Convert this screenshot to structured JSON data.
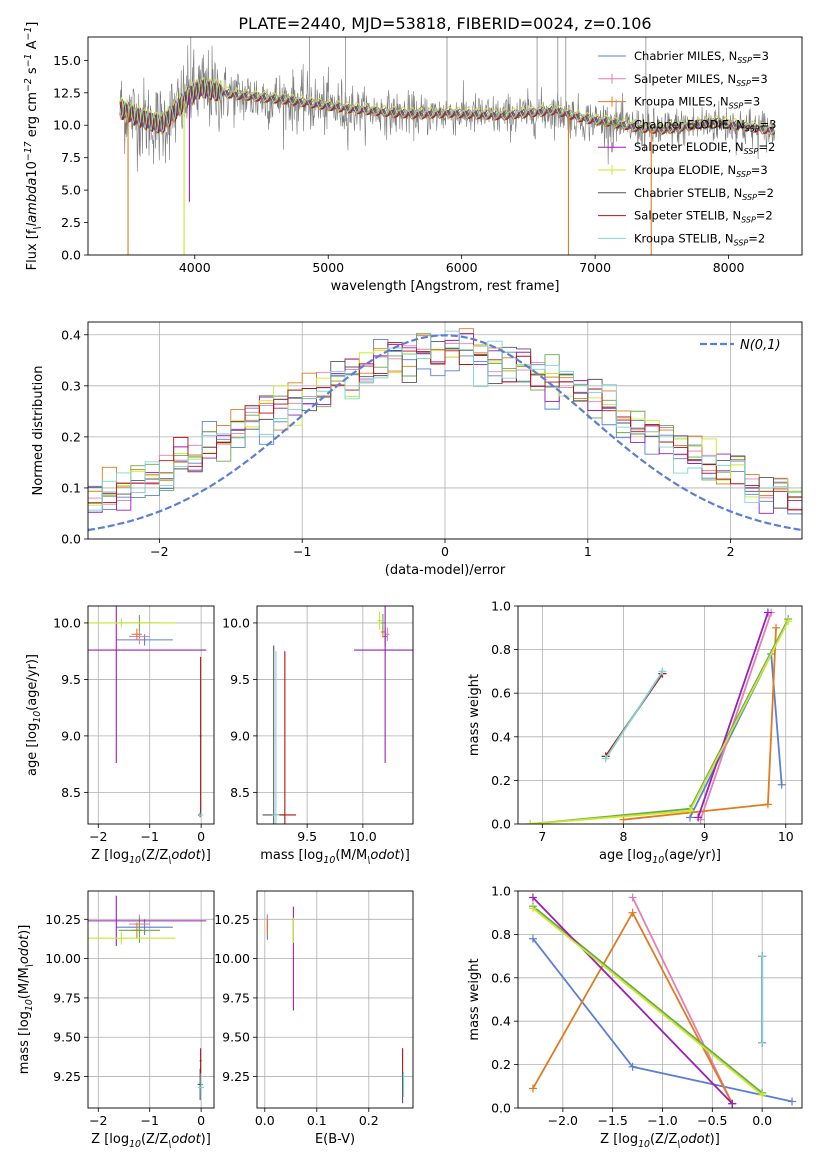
{
  "figure": {
    "title": "PLATE=2440, MJD=53818, FIBERID=0024, z=0.106"
  },
  "models": [
    {
      "name": "Chabrier MILES, N$_{SSP}$=3",
      "label_main": "Chabrier MILES, N",
      "label_sub": "SSP",
      "label_tail": "=3",
      "color": "#5b7fd6"
    },
    {
      "name": "Salpeter MILES, N$_{SSP}$=3",
      "label_main": "Salpeter MILES, N",
      "label_sub": "SSP",
      "label_tail": "=3",
      "color": "#e57fb5"
    },
    {
      "name": "Kroupa MILES, N$_{SSP}$=3",
      "label_main": "Kroupa MILES, N",
      "label_sub": "SSP",
      "label_tail": "=3",
      "color": "#e07b1f"
    },
    {
      "name": "Chabrier ELODIE, N$_{SSP}$=3",
      "label_main": "Chabrier ELODIE, N",
      "label_sub": "SSP",
      "label_tail": "=3",
      "color": "#6aa84f"
    },
    {
      "name": "Salpeter ELODIE, N$_{SSP}$=2",
      "label_main": "Salpeter ELODIE, N",
      "label_sub": "SSP",
      "label_tail": "=2",
      "color": "#9b1fb8"
    },
    {
      "name": "Kroupa ELODIE, N$_{SSP}$=3",
      "label_main": "Kroupa ELODIE, N",
      "label_sub": "SSP",
      "label_tail": "=3",
      "color": "#c8ea2a"
    },
    {
      "name": "Chabrier STELIB, N$_{SSP}$=2",
      "label_main": "Chabrier STELIB, N",
      "label_sub": "SSP",
      "label_tail": "=2",
      "color": "#555555"
    },
    {
      "name": "Salpeter STELIB, N$_{SSP}$=2",
      "label_main": "Salpeter STELIB, N",
      "label_sub": "SSP",
      "label_tail": "=2",
      "color": "#b01515"
    },
    {
      "name": "Kroupa STELIB, N$_{SSP}$=2",
      "label_main": "Kroupa STELIB, N",
      "label_sub": "SSP",
      "label_tail": "=2",
      "color": "#7fd6d6"
    }
  ],
  "chart_data": [
    {
      "id": "spectrum",
      "type": "line",
      "title": "PLATE=2440, MJD=53818, FIBERID=0024, z=0.106",
      "xlabel": "wavelength [Angstrom, rest frame]",
      "ylabel": "Flux [f$_\\lambda$10$^{-17}$ erg cm$^{-2}$ s$^{-1}$ A$^{-1}$]",
      "xlim": [
        3200,
        8550
      ],
      "ylim": [
        0,
        16.8
      ],
      "xticks": [
        4000,
        5000,
        6000,
        7000,
        8000
      ],
      "yticks": [
        0.0,
        2.5,
        5.0,
        7.5,
        10.0,
        12.5,
        15.0
      ],
      "legend": "top-right",
      "continuum": {
        "x": [
          3450,
          3550,
          3650,
          3750,
          3850,
          3950,
          4050,
          4150,
          4300,
          4500,
          4700,
          4900,
          5100,
          5300,
          5500,
          5700,
          5900,
          6100,
          6300,
          6500,
          6700,
          6900,
          7100,
          7300,
          7500,
          7700,
          7900,
          8100,
          8300
        ],
        "y": [
          11.2,
          10.7,
          10.3,
          10.0,
          11.0,
          12.2,
          12.8,
          12.6,
          12.3,
          12.1,
          11.9,
          11.6,
          11.3,
          11.1,
          10.9,
          10.8,
          10.9,
          10.8,
          10.7,
          10.9,
          11.1,
          10.5,
          10.2,
          9.8,
          9.6,
          9.9,
          10.2,
          9.9,
          9.6
        ]
      },
      "model_offsets": [
        0.0,
        0.1,
        -0.1,
        0.05,
        0.15,
        0.3,
        0.0,
        -0.05,
        0.05
      ],
      "dips": [
        {
          "x": 3500,
          "y": 0.0
        },
        {
          "x": 3920,
          "y": 0.0
        },
        {
          "x": 3960,
          "y": 4.1
        },
        {
          "x": 6800,
          "y": 0.0
        },
        {
          "x": 7420,
          "y": 0.0
        }
      ],
      "spikes": [
        3970,
        4860,
        5130,
        5890,
        6565,
        6720,
        6780,
        7380
      ]
    },
    {
      "id": "residuals",
      "type": "area",
      "xlabel": "(data-model)/error",
      "ylabel": "Normed distribution",
      "xlim": [
        -2.5,
        2.5
      ],
      "ylim": [
        0,
        0.425
      ],
      "xticks": [
        -2,
        -1,
        0,
        1,
        2
      ],
      "yticks": [
        0.0,
        0.1,
        0.2,
        0.3,
        0.4
      ],
      "legend": "top-right",
      "gaussian_label": "$\\mathcal{N}(0,1)$",
      "gaussian": {
        "mean": 0,
        "sigma": 1
      }
    },
    {
      "id": "age-vs-Z",
      "type": "scatter",
      "xlabel": "Z [log$_{10}$(Z/Z$_\\odot$)]",
      "ylabel": "age  [log$_{10}$(age/yr)]",
      "xlim": [
        -2.2,
        0.25
      ],
      "ylim": [
        8.22,
        10.15
      ],
      "xticks": [
        -2,
        -1,
        0
      ],
      "yticks": [
        8.5,
        9.0,
        9.5,
        10.0
      ],
      "points": [
        {
          "model": 0,
          "x": -1.1,
          "y": 9.85,
          "xerr": 0.55,
          "yerr": 0.05
        },
        {
          "model": 1,
          "x": -1.2,
          "y": 9.88,
          "xerr": 0.2,
          "yerr": 0.07
        },
        {
          "model": 2,
          "x": -1.25,
          "y": 9.9,
          "xerr": 0.1,
          "yerr": 0.05
        },
        {
          "model": 3,
          "x": -1.2,
          "y": 10.0,
          "xerr": 0.4,
          "yerr": 0.07
        },
        {
          "model": 4,
          "x": -1.65,
          "y": 9.76,
          "xerr": 1.75,
          "yerr": 1.0
        },
        {
          "model": 5,
          "x": -1.55,
          "y": 10.0,
          "xerr": 1.05,
          "yerr": 0.04
        },
        {
          "model": 6,
          "x": -0.02,
          "y": 8.3,
          "xerr": 0.04,
          "yerr": 0.02
        },
        {
          "model": 7,
          "x": -0.01,
          "y": 9.0,
          "xerr": 0.02,
          "yerr": 0.7
        },
        {
          "model": 8,
          "x": 0.0,
          "y": 8.3,
          "xerr": 0.04,
          "yerr": 0.02
        }
      ]
    },
    {
      "id": "age-vs-mass",
      "type": "scatter",
      "xlabel": "mass [log$_{10}$(M/M$_\\odot$)]",
      "ylabel": "",
      "xlim": [
        9.05,
        10.45
      ],
      "ylim": [
        8.22,
        10.15
      ],
      "xticks": [
        9.5,
        10.0
      ],
      "yticks": [
        8.5,
        9.0,
        9.5,
        10.0
      ],
      "points": [
        {
          "model": 0,
          "x": 10.2,
          "y": 9.88,
          "xerr": 0.02,
          "yerr": 0.08
        },
        {
          "model": 1,
          "x": 10.22,
          "y": 9.9,
          "xerr": 0.02,
          "yerr": 0.06
        },
        {
          "model": 2,
          "x": 10.18,
          "y": 9.92,
          "xerr": 0.02,
          "yerr": 0.05
        },
        {
          "model": 3,
          "x": 10.18,
          "y": 10.0,
          "xerr": 0.02,
          "yerr": 0.08
        },
        {
          "model": 4,
          "x": 10.2,
          "y": 9.76,
          "xerr": 0.28,
          "yerr": 1.0
        },
        {
          "model": 5,
          "x": 10.15,
          "y": 10.02,
          "xerr": 0.02,
          "yerr": 0.08
        },
        {
          "model": 6,
          "x": 9.2,
          "y": 8.3,
          "xerr": 0.1,
          "yerr": 1.5
        },
        {
          "model": 7,
          "x": 9.3,
          "y": 8.3,
          "xerr": 0.1,
          "yerr": 1.45
        },
        {
          "model": 8,
          "x": 9.22,
          "y": 8.3,
          "xerr": 0.03,
          "yerr": 1.45
        }
      ]
    },
    {
      "id": "weight-vs-age",
      "type": "line",
      "xlabel": "age  [log$_{10}$(age/yr)]",
      "ylabel": "mass weight",
      "xlim": [
        6.7,
        10.2
      ],
      "ylim": [
        0,
        1.0
      ],
      "xticks": [
        7,
        8,
        9,
        10
      ],
      "yticks": [
        0.0,
        0.2,
        0.4,
        0.6,
        0.8,
        1.0
      ],
      "series": [
        {
          "model": 0,
          "x": [
            8.82,
            9.82,
            9.95
          ],
          "y": [
            0.03,
            0.78,
            0.18
          ]
        },
        {
          "model": 1,
          "x": [
            8.95,
            9.82
          ],
          "y": [
            0.02,
            0.97
          ]
        },
        {
          "model": 2,
          "x": [
            8.0,
            9.78,
            9.88
          ],
          "y": [
            0.02,
            0.09,
            0.9
          ]
        },
        {
          "model": 3,
          "x": [
            6.85,
            8.82,
            10.03
          ],
          "y": [
            0.0,
            0.07,
            0.94
          ]
        },
        {
          "model": 4,
          "x": [
            8.92,
            9.78
          ],
          "y": [
            0.03,
            0.97
          ]
        },
        {
          "model": 5,
          "x": [
            6.85,
            8.82,
            10.03
          ],
          "y": [
            0.0,
            0.06,
            0.93
          ]
        },
        {
          "model": 6,
          "x": [
            7.78,
            8.48
          ],
          "y": [
            0.31,
            0.69
          ]
        },
        {
          "model": 7,
          "x": [
            7.78,
            8.48
          ],
          "y": [
            0.31,
            0.69
          ]
        },
        {
          "model": 8,
          "x": [
            7.78,
            8.48
          ],
          "y": [
            0.3,
            0.7
          ]
        }
      ]
    },
    {
      "id": "mass-vs-Z",
      "type": "scatter",
      "xlabel": "Z [log$_{10}$(Z/Z$_\\odot$)]",
      "ylabel": "mass [log$_{10}$(M/M$_\\odot$)]",
      "xlim": [
        -2.2,
        0.25
      ],
      "ylim": [
        9.05,
        10.43
      ],
      "xticks": [
        -2,
        -1,
        0
      ],
      "yticks": [
        9.25,
        9.5,
        9.75,
        10.0,
        10.25
      ],
      "points": [
        {
          "model": 0,
          "x": -1.1,
          "y": 10.2,
          "xerr": 0.55,
          "yerr": 0.05
        },
        {
          "model": 1,
          "x": -1.2,
          "y": 10.22,
          "xerr": 0.2,
          "yerr": 0.06
        },
        {
          "model": 2,
          "x": -1.25,
          "y": 10.18,
          "xerr": 0.1,
          "yerr": 0.05
        },
        {
          "model": 3,
          "x": -1.2,
          "y": 10.18,
          "xerr": 0.4,
          "yerr": 0.08
        },
        {
          "model": 4,
          "x": -1.65,
          "y": 10.24,
          "xerr": 1.75,
          "yerr": 0.16
        },
        {
          "model": 5,
          "x": -1.55,
          "y": 10.13,
          "xerr": 1.05,
          "yerr": 0.04
        },
        {
          "model": 6,
          "x": -0.02,
          "y": 9.2,
          "xerr": 0.05,
          "yerr": 0.1
        },
        {
          "model": 7,
          "x": -0.01,
          "y": 9.35,
          "xerr": 0.02,
          "yerr": 0.08
        },
        {
          "model": 8,
          "x": 0.0,
          "y": 9.18,
          "xerr": 0.06,
          "yerr": 0.05
        }
      ]
    },
    {
      "id": "mass-vs-EBV",
      "type": "scatter",
      "xlabel": "E(B-V)",
      "ylabel": "",
      "xlim": [
        -0.015,
        0.285
      ],
      "ylim": [
        9.05,
        10.43
      ],
      "xticks": [
        0.0,
        0.1,
        0.2
      ],
      "yticks": [
        9.25,
        9.5,
        9.75,
        10.0,
        10.25
      ],
      "points": [
        {
          "model": 0,
          "x": 0.005,
          "y": 10.2,
          "xerr": 0.001,
          "yerr": 0.08
        },
        {
          "model": 1,
          "x": 0.005,
          "y": 10.22,
          "xerr": 0.001,
          "yerr": 0.06
        },
        {
          "model": 2,
          "x": 0.005,
          "y": 10.2,
          "xerr": 0.001,
          "yerr": 0.05
        },
        {
          "model": 3,
          "x": 0.055,
          "y": 10.18,
          "xerr": 0.001,
          "yerr": 0.08
        },
        {
          "model": 4,
          "x": 0.055,
          "y": 10.0,
          "xerr": 0.001,
          "yerr": 0.33
        },
        {
          "model": 5,
          "x": 0.055,
          "y": 10.18,
          "xerr": 0.001,
          "yerr": 0.08
        },
        {
          "model": 6,
          "x": 0.265,
          "y": 9.18,
          "xerr": 0.001,
          "yerr": 0.1
        },
        {
          "model": 7,
          "x": 0.265,
          "y": 9.35,
          "xerr": 0.001,
          "yerr": 0.08
        },
        {
          "model": 8,
          "x": 0.267,
          "y": 9.2,
          "xerr": 0.001,
          "yerr": 0.08
        }
      ]
    },
    {
      "id": "weight-vs-Z",
      "type": "line",
      "xlabel": "Z [log$_{10}$(Z/Z$_\\odot$)]",
      "ylabel": "mass weight",
      "xlim": [
        -2.45,
        0.4
      ],
      "ylim": [
        0,
        1.0
      ],
      "xticks": [
        -2.0,
        -1.5,
        -1.0,
        -0.5,
        0.0
      ],
      "yticks": [
        0.0,
        0.2,
        0.4,
        0.6,
        0.8,
        1.0
      ],
      "series": [
        {
          "model": 0,
          "x": [
            -2.3,
            -1.3,
            0.3
          ],
          "y": [
            0.78,
            0.19,
            0.03
          ]
        },
        {
          "model": 1,
          "x": [
            -1.3,
            -0.3
          ],
          "y": [
            0.97,
            0.02
          ]
        },
        {
          "model": 2,
          "x": [
            -2.3,
            -1.3,
            -0.3
          ],
          "y": [
            0.09,
            0.9,
            0.02
          ]
        },
        {
          "model": 3,
          "x": [
            -2.3,
            0.0
          ],
          "y": [
            0.93,
            0.07
          ]
        },
        {
          "model": 4,
          "x": [
            -2.3,
            -0.3
          ],
          "y": [
            0.97,
            0.02
          ]
        },
        {
          "model": 5,
          "x": [
            -2.3,
            0.0
          ],
          "y": [
            0.92,
            0.06
          ]
        },
        {
          "model": 6,
          "x": [
            0.0,
            0.0
          ],
          "y": [
            0.3,
            0.7
          ]
        },
        {
          "model": 7,
          "x": [
            0.0,
            0.0
          ],
          "y": [
            0.3,
            0.7
          ]
        },
        {
          "model": 8,
          "x": [
            0.0,
            0.0
          ],
          "y": [
            0.3,
            0.7
          ]
        }
      ]
    }
  ]
}
